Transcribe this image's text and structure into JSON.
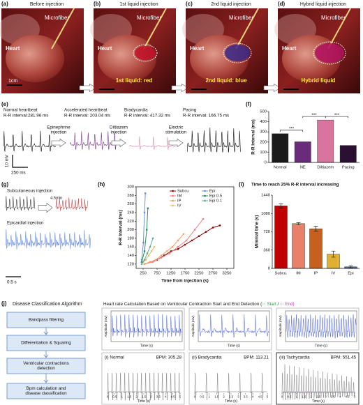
{
  "photos": [
    {
      "label": "(a)",
      "title": "Before injection",
      "microfiber": "Microfiber",
      "heart": "Heart",
      "scale": "1cm"
    },
    {
      "label": "(b)",
      "title": "1st liquid injection",
      "microfiber": "Microfiber",
      "heart": "Heart",
      "caption": "1st liquid: red",
      "color": "#c0102a"
    },
    {
      "label": "(c)",
      "title": "2nd liquid injection",
      "microfiber": "Microfiber",
      "heart": "Heart",
      "caption": "2nd liquid: blue",
      "color": "#3a2a8a"
    },
    {
      "label": "(d)",
      "title": "Hybrid liquid injection",
      "microfiber": "Microfiber",
      "heart": "Heart",
      "caption": "Hybrid liquid",
      "color": "#b01060"
    }
  ],
  "ecg": {
    "label": "(e)",
    "annotations": [
      {
        "title": "Normal heartbeat",
        "interval": "R-R interval:281.96 ms"
      },
      {
        "title": "Accelerated heartbeat",
        "interval": "R-R interval: 203.04 ms"
      },
      {
        "title": "Bradycardia",
        "interval": "R-R interval: 417.32 ms"
      },
      {
        "title": "Pacing",
        "interval": "R-R interval: 166.75 ms"
      }
    ],
    "steps": [
      [
        "Epinephrine",
        "injection"
      ],
      [
        "Diltiazem",
        "injection"
      ],
      [
        "Electric",
        "stimulation"
      ]
    ],
    "scale_y": "10 mV",
    "scale_x": "250 ms"
  },
  "injection": {
    "label": "(g)",
    "top": "Subcutaneous injection",
    "delay": "4.5min",
    "bottom": "Epicardial injection",
    "scale": "0.5 s"
  },
  "algorithm": {
    "label": "(j)",
    "title": "Disease Classification Algorithm",
    "steps": [
      [
        "Bandpass filtering"
      ],
      [
        "Differentiation & Squaring"
      ],
      [
        "Ventricular contractions",
        "detection"
      ],
      [
        "Bpm calculation and",
        "disease classification"
      ]
    ],
    "heading": "Heart rate Calculation Based on Ventricular Contraction Start and End Detection (",
    "start": "○: Start",
    "separator": " / ",
    "end": "○: End)",
    "axis_y": "Amplitude (mV)",
    "axis_x": "Time (s)",
    "time_ticks": [
      0,
      0.5,
      1,
      1.5,
      2,
      2.5,
      3,
      3.5,
      4,
      4.5,
      5
    ],
    "plots": [
      {
        "name": "(i) Normal",
        "bpm": "BPM: 305.28"
      },
      {
        "name": "(ii) Bradycardia",
        "bpm": "BPM: 113.21"
      },
      {
        "name": "(iii) Tachycardia",
        "bpm": "BPM: 551.45"
      }
    ]
  },
  "chart_data": [
    {
      "type": "bar",
      "label": "(f)",
      "ylabel": "R-R Interval (ms)",
      "categories": [
        "Normal",
        "NE",
        "Diltiazem",
        "Pacing"
      ],
      "values": [
        282,
        203,
        417,
        167
      ],
      "colors": [
        "#1a1a1a",
        "#6a2c7a",
        "#d8749e",
        "#2b1033"
      ],
      "ylim": [
        0,
        500
      ],
      "yticks": [
        0,
        100,
        200,
        300,
        400,
        500
      ],
      "grid": false,
      "significance": [
        "***",
        "***",
        "***"
      ]
    },
    {
      "type": "line",
      "label": "(h)",
      "xlabel": "Time from injection (s)",
      "ylabel": "R-R Interval (ms)",
      "xlim": [
        0,
        3500
      ],
      "xticks": [
        250,
        750,
        1250,
        1750,
        2250,
        2750,
        3250
      ],
      "ylim": [
        110,
        300
      ],
      "yticks": [
        120,
        140,
        160,
        180,
        200,
        220,
        240,
        260,
        280,
        300
      ],
      "grid": false,
      "legend": "upper right",
      "series": [
        {
          "name": "Subcu",
          "color": "#8b0000",
          "x": [
            300,
            500,
            750,
            1000,
            1250,
            1500,
            1750,
            2000,
            2250,
            2500,
            2750,
            3000
          ],
          "values": [
            120,
            125,
            130,
            140,
            150,
            155,
            165,
            175,
            185,
            195,
            205,
            210
          ]
        },
        {
          "name": "IM",
          "color": "#f08080",
          "x": [
            300,
            600,
            900,
            1200,
            1500,
            1800,
            2100,
            2400
          ],
          "values": [
            120,
            125,
            135,
            145,
            160,
            175,
            200,
            225
          ]
        },
        {
          "name": "IP",
          "color": "#f4a460",
          "x": [
            300,
            500,
            700,
            900,
            1100,
            1300,
            1500,
            1700
          ],
          "values": [
            120,
            125,
            130,
            140,
            150,
            160,
            175,
            190
          ]
        },
        {
          "name": "IV",
          "color": "#e0c060",
          "x": [
            250,
            350,
            450,
            550,
            650
          ],
          "values": [
            125,
            130,
            140,
            150,
            160
          ]
        },
        {
          "name": "Epi",
          "color": "#6f8fd8",
          "x": [
            200,
            260,
            300,
            330
          ],
          "values": [
            130,
            170,
            240,
            285
          ]
        },
        {
          "name": "Epi 0.5",
          "color": "#2e8b57",
          "x": [
            200,
            300,
            380,
            420
          ],
          "values": [
            125,
            150,
            200,
            250
          ]
        },
        {
          "name": "Epi 0.1",
          "color": "#5fa8a0",
          "x": [
            200,
            300,
            400,
            500,
            600
          ],
          "values": [
            120,
            130,
            145,
            160,
            180
          ]
        }
      ]
    },
    {
      "type": "bar",
      "label": "(i)",
      "title": "Time to reach 25% R-R interval increasing",
      "ylabel": "Minimal time (s)",
      "categories": [
        "Subcu.",
        "IM",
        "IP",
        "IV",
        "Epi"
      ],
      "values": [
        1230,
        880,
        780,
        280,
        30
      ],
      "errors": [
        40,
        20,
        50,
        60,
        20
      ],
      "colors": [
        "#c00000",
        "#e8806a",
        "#c7601e",
        "#e0b030",
        "#4a5fc0"
      ],
      "ylim": [
        0,
        1440
      ],
      "yticks": [
        0,
        360,
        720,
        1080,
        1440
      ],
      "grid": false
    }
  ]
}
